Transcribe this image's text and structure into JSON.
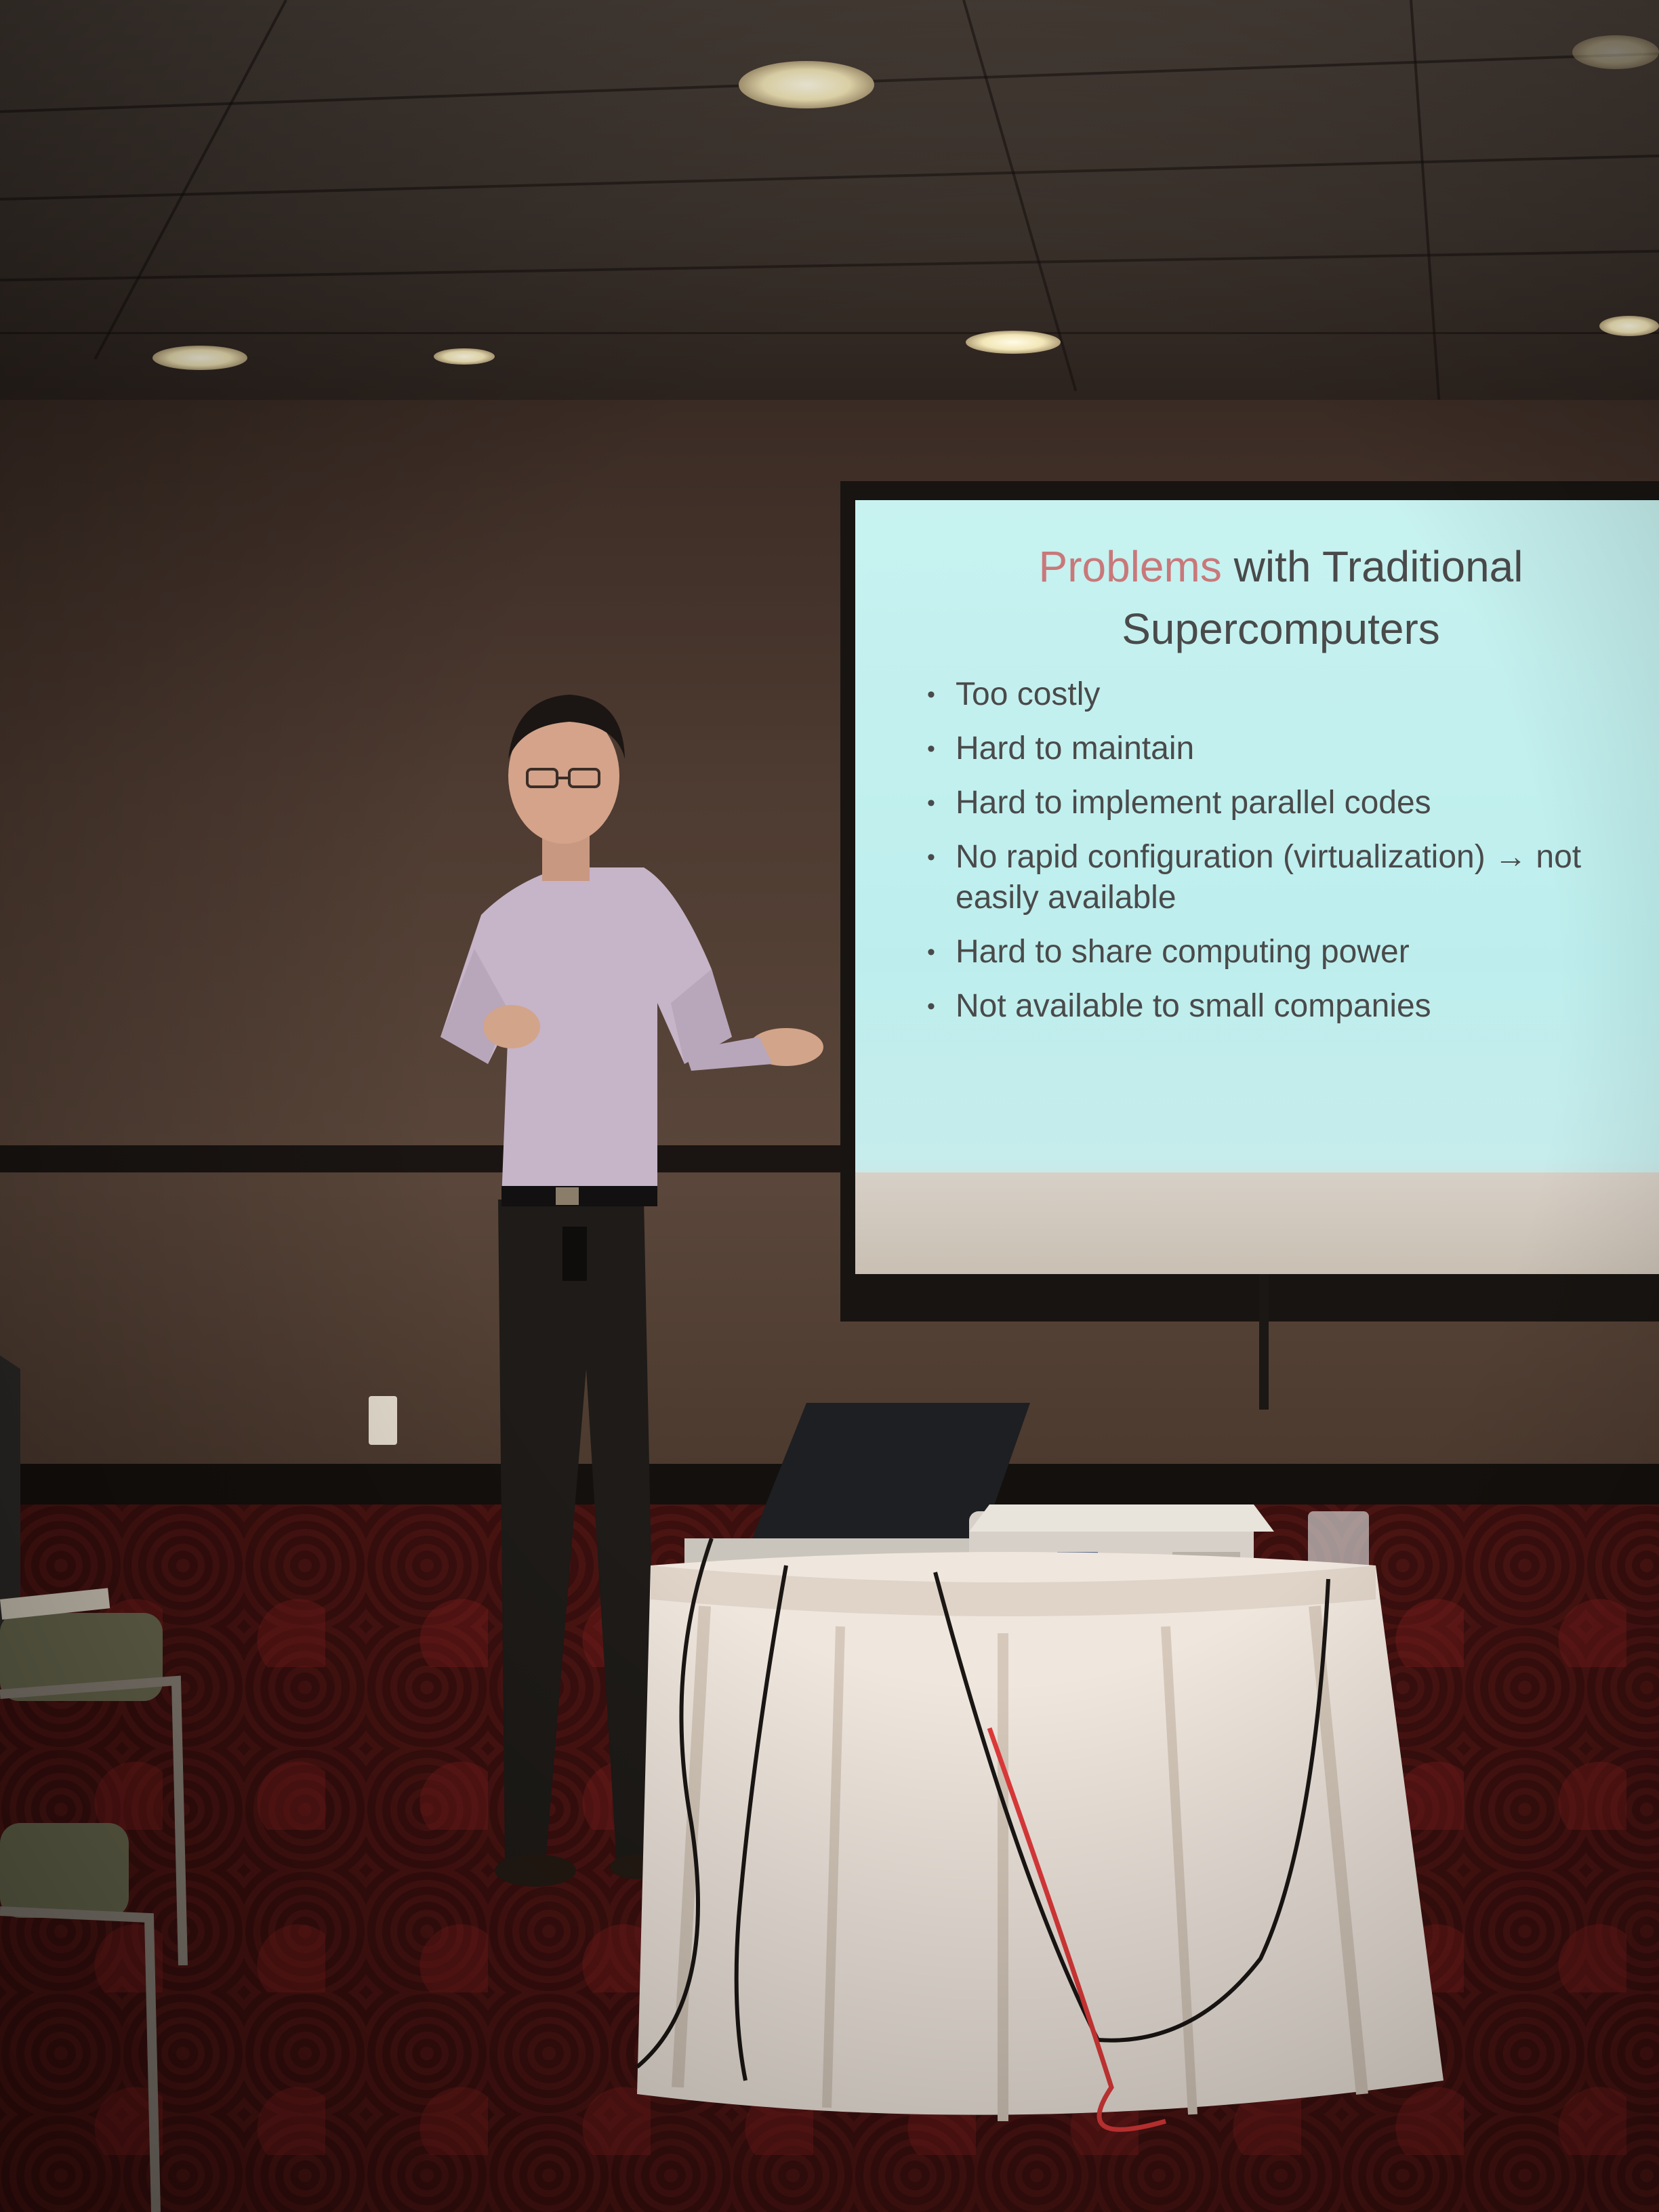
{
  "slide": {
    "title_accent": "Problems",
    "title_rest_line1": " with Traditional",
    "title_line2": "Supercomputers",
    "bullets": [
      "Too costly",
      "Hard to maintain",
      "Hard to implement parallel codes",
      "No rapid configuration (virtualization) → not easily available",
      "Hard to share computing power",
      "Not available to small companies"
    ]
  },
  "colors": {
    "slide_background": "#c7f2f0",
    "slide_text": "#4a4a4a",
    "title_accent": "#c9787a",
    "carpet": "#4a1412",
    "tablecloth": "#efe6dd"
  }
}
